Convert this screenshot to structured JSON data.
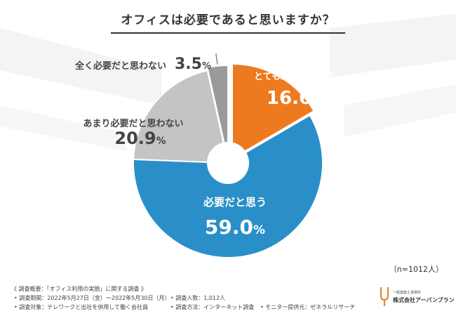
{
  "title": "オフィスは必要であると思いますか？",
  "sample_note": "（n=1012人）",
  "footer": {
    "heading": "《 調査概要：「オフィス利用の実態」に関する調査 》",
    "period": "• 調査期間：2022年5月27日（金）〜2022年5月30日（月）",
    "count": "• 調査人数：1,012人",
    "target": "• 調査対象：テレワークと出社を併用して働く会社員",
    "method": "• 調査方法：インターネット調査",
    "provider": "• モニター提供元：ゼネラルリサーチ"
  },
  "logo": {
    "small_text": "一級建築士事務所",
    "name": "株式会社アーバンプラン"
  },
  "colors": {
    "orange": "#ee7a1f",
    "blue": "#2a8fc8",
    "light_gray": "#c4c4c4",
    "dark_gray": "#9a9a9a"
  },
  "chart_data": {
    "type": "pie",
    "title": "オフィスは必要であると思いますか？",
    "style": "donut",
    "slices": [
      {
        "label": "とても必要だと思う",
        "value": 16.6,
        "value_text": "16.6",
        "color": "#ee7a1f"
      },
      {
        "label": "必要だと思う",
        "value": 59.0,
        "value_text": "59.0",
        "color": "#2a8fc8"
      },
      {
        "label": "あまり必要だと思わない",
        "value": 20.9,
        "value_text": "20.9",
        "color": "#c4c4c4"
      },
      {
        "label": "全く必要だと思わない",
        "value": 3.5,
        "value_text": "3.5",
        "color": "#9a9a9a"
      }
    ],
    "unit": "%"
  }
}
